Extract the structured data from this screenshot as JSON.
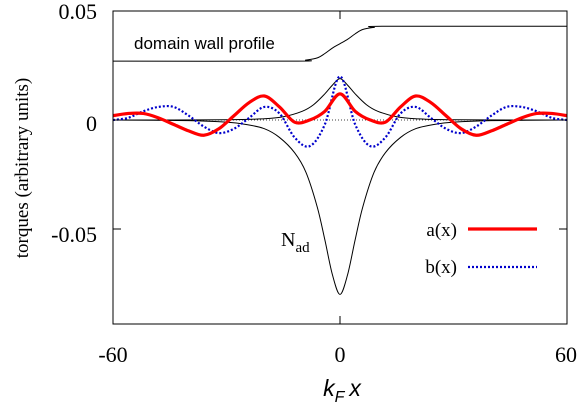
{
  "chart_data": {
    "type": "line",
    "title": "",
    "xlabel_main": "k",
    "xlabel_sub": "F",
    "xlabel_var": "x",
    "ylabel": "torques (arbitrary units)",
    "xlim": [
      -60,
      60
    ],
    "ylim": [
      -0.09,
      0.05
    ],
    "x_ticks": [
      -60,
      0,
      60
    ],
    "x_tick_labels": [
      "-60",
      "0",
      "60"
    ],
    "y_ticks": [
      0.05,
      0,
      -0.05
    ],
    "y_tick_labels": [
      "0.05",
      "0",
      "-0.05"
    ],
    "grid": false,
    "legend_position": "lower-right",
    "annotations": {
      "wall_profile_label": "domain wall profile",
      "nad_main": "N",
      "nad_sub": "ad"
    },
    "colors": {
      "a": "#ff0000",
      "b": "#0000cc",
      "nad": "#000000",
      "profile": "#000000",
      "zero_line": "#000000"
    },
    "series": [
      {
        "name": "a(x)",
        "style": "solid-thick",
        "x": [
          -60,
          -56,
          -52,
          -48,
          -44,
          -40,
          -36,
          -32,
          -28,
          -24,
          -20,
          -16,
          -12,
          -8,
          -4,
          0,
          4,
          8,
          12,
          16,
          20,
          24,
          28,
          32,
          36,
          40,
          44,
          48,
          52,
          56,
          60
        ],
        "y": [
          0.002,
          0.003,
          0.003,
          0.001,
          -0.002,
          -0.005,
          -0.007,
          -0.004,
          0.002,
          0.008,
          0.011,
          0.006,
          -0.001,
          0.0,
          0.004,
          0.012,
          0.004,
          0.0,
          -0.001,
          0.006,
          0.011,
          0.008,
          0.002,
          -0.004,
          -0.007,
          -0.005,
          -0.002,
          0.001,
          0.003,
          0.003,
          0.002
        ]
      },
      {
        "name": "b(x)",
        "style": "dotted",
        "x": [
          -60,
          -56,
          -52,
          -48,
          -44,
          -40,
          -36,
          -32,
          -28,
          -24,
          -20,
          -16,
          -12,
          -8,
          -4,
          0,
          4,
          8,
          12,
          16,
          20,
          24,
          28,
          32,
          36,
          40,
          44,
          48,
          52,
          56,
          60
        ],
        "y": [
          0.0,
          0.001,
          0.004,
          0.006,
          0.006,
          0.002,
          -0.003,
          -0.006,
          -0.004,
          0.001,
          0.006,
          0.003,
          -0.008,
          -0.012,
          -0.002,
          0.02,
          -0.002,
          -0.012,
          -0.008,
          0.003,
          0.006,
          0.001,
          -0.004,
          -0.006,
          -0.003,
          0.002,
          0.006,
          0.006,
          0.004,
          0.001,
          0.0
        ]
      },
      {
        "name": "N_ad",
        "style": "solid-thin",
        "x": [
          -60,
          -40,
          -30,
          -25,
          -20,
          -16,
          -12,
          -9,
          -6,
          -4,
          -2,
          0,
          2,
          4,
          6,
          9,
          12,
          16,
          20,
          25,
          30,
          40,
          60
        ],
        "y": [
          0.0,
          -0.0003,
          -0.001,
          -0.002,
          -0.004,
          -0.008,
          -0.015,
          -0.024,
          -0.04,
          -0.055,
          -0.071,
          -0.08,
          -0.071,
          -0.055,
          -0.04,
          -0.024,
          -0.015,
          -0.008,
          -0.004,
          -0.002,
          -0.001,
          -0.0003,
          0.0
        ]
      },
      {
        "name": "",
        "style": "solid-thin",
        "x": [
          -60,
          -30,
          -20,
          -15,
          -10,
          -7,
          -4,
          -2,
          0,
          2,
          4,
          7,
          10,
          15,
          20,
          30,
          60
        ],
        "y": [
          0.0,
          0.0001,
          0.0006,
          0.0015,
          0.004,
          0.007,
          0.012,
          0.016,
          0.019,
          0.016,
          0.012,
          0.007,
          0.004,
          0.0015,
          0.0006,
          0.0001,
          0.0
        ]
      },
      {
        "name": "domain wall profile",
        "style": "solid-thin",
        "x": [
          -60,
          -12,
          -9,
          -6,
          -4,
          -2,
          0,
          2,
          4,
          6,
          9,
          12,
          60
        ],
        "y": [
          0.027,
          0.027,
          0.0275,
          0.0285,
          0.0305,
          0.033,
          0.035,
          0.037,
          0.0395,
          0.0415,
          0.0425,
          0.043,
          0.043
        ]
      }
    ]
  }
}
